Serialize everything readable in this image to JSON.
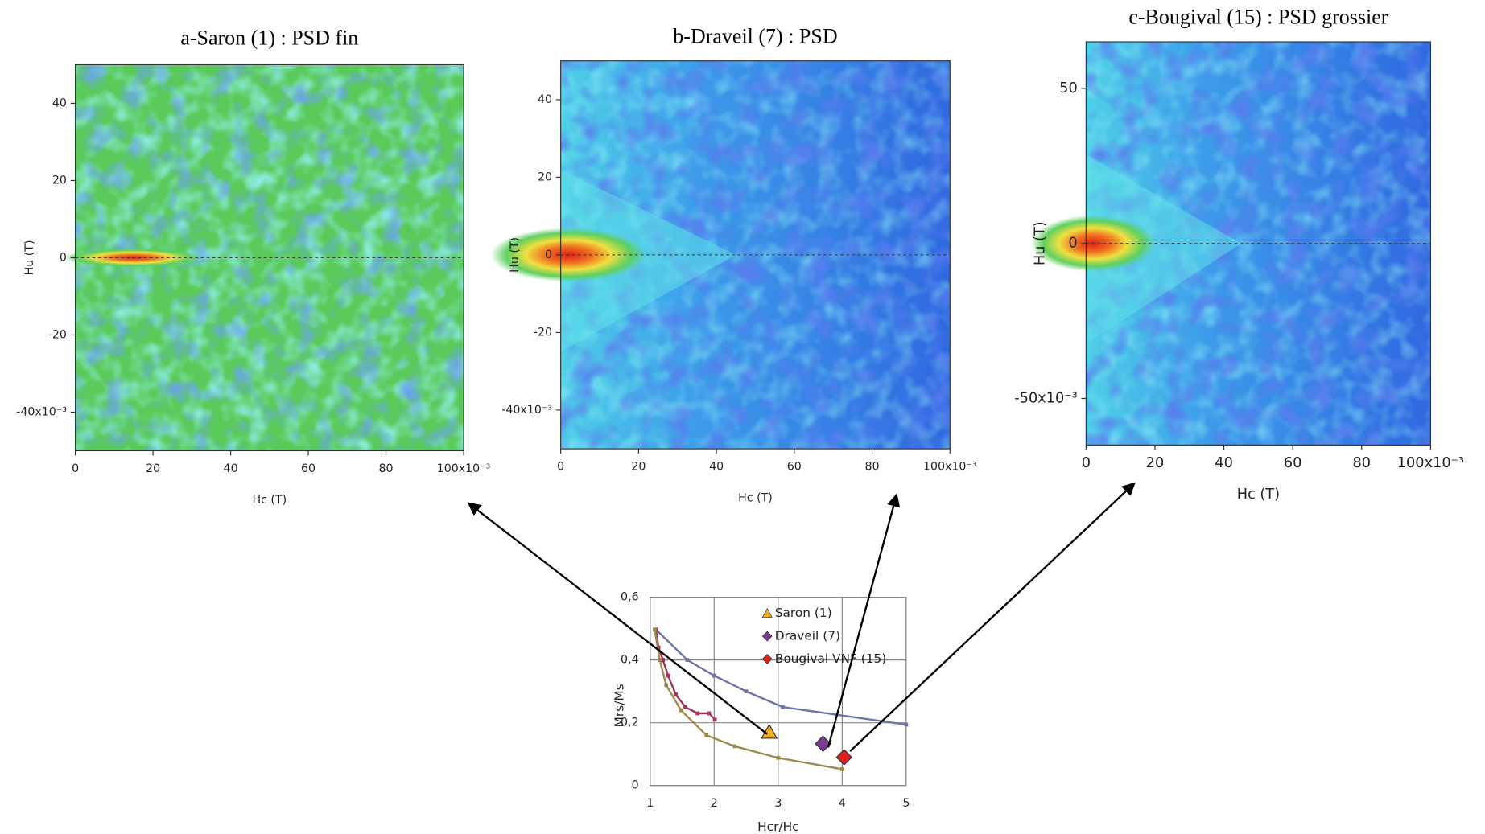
{
  "chart_data": [
    {
      "type": "contour",
      "title": "a-Saron (1) : PSD fin",
      "x_label": "Hc (T)",
      "y_label": "Hu (T)",
      "xlim": [
        0,
        100
      ],
      "ylim": [
        -50,
        50
      ],
      "xticks": [
        0,
        20,
        40,
        60,
        80,
        {
          "value": 100,
          "label": "100x10⁻³"
        }
      ],
      "yticks": [
        {
          "value": -40,
          "label": "-40x10⁻³"
        },
        -20,
        0,
        20,
        40
      ]
    },
    {
      "type": "contour",
      "title": "b-Draveil (7) : PSD",
      "x_label": "Hc (T)",
      "y_label": "Hu (T)",
      "xlim": [
        0,
        100
      ],
      "ylim": [
        -50,
        50
      ],
      "xticks": [
        0,
        20,
        40,
        60,
        80,
        {
          "value": 100,
          "label": "100x10⁻³"
        }
      ],
      "yticks": [
        {
          "value": -40,
          "label": "-40x10⁻³"
        },
        -20,
        0,
        20,
        40
      ]
    },
    {
      "type": "contour",
      "title": "c-Bougival (15) : PSD grossier",
      "x_label": "Hc (T)",
      "y_label": "Hu (T)",
      "xlim": [
        0,
        100
      ],
      "ylim": [
        -65,
        65
      ],
      "xticks": [
        0,
        20,
        40,
        60,
        80,
        {
          "value": 100,
          "label": "100x10⁻³"
        }
      ],
      "yticks": [
        {
          "value": -50,
          "label": "-50x10⁻³"
        },
        0,
        50
      ]
    },
    {
      "type": "scatter",
      "x_label": "Hcr/Hc",
      "y_label": "Mrs/Ms",
      "xlim": [
        1,
        5
      ],
      "ylim": [
        0,
        0.6
      ],
      "xticks": [
        1,
        2,
        3,
        4,
        5
      ],
      "yticks": [
        0,
        {
          "value": 0.2,
          "label": "0,2"
        },
        {
          "value": 0.4,
          "label": "0,4"
        },
        {
          "value": 0.6,
          "label": "0,6"
        }
      ],
      "grid": true,
      "lines": [
        {
          "color": "#6b73a8",
          "x": [
            1.09,
            1.58,
            2.0,
            2.5,
            3.07,
            5.0
          ],
          "values": [
            0.497,
            0.4,
            0.35,
            0.3,
            0.25,
            0.194
          ]
        },
        {
          "color": "#a8325e",
          "x": [
            1.09,
            1.13,
            1.2,
            1.28,
            1.4,
            1.55,
            1.74,
            1.92,
            2.01
          ],
          "values": [
            0.497,
            0.44,
            0.4,
            0.35,
            0.29,
            0.25,
            0.23,
            0.23,
            0.21
          ]
        },
        {
          "color": "#9c8a4a",
          "x": [
            1.07,
            1.15,
            1.25,
            1.48,
            1.88,
            2.32,
            3.0,
            4.0
          ],
          "values": [
            0.497,
            0.4,
            0.32,
            0.24,
            0.16,
            0.125,
            0.088,
            0.052
          ]
        }
      ],
      "series": [
        {
          "name": "Saron (1)",
          "color": "#f0b020",
          "marker": "triangle",
          "x": [
            2.86
          ],
          "values": [
            0.17
          ]
        },
        {
          "name": "Draveil (7)",
          "color": "#7a3c8c",
          "marker": "diamond",
          "x": [
            3.7
          ],
          "values": [
            0.133
          ]
        },
        {
          "name": "Bougival VNF (15)",
          "color": "#e0201c",
          "marker": "diamond",
          "x": [
            4.03
          ],
          "values": [
            0.09
          ]
        }
      ]
    }
  ]
}
